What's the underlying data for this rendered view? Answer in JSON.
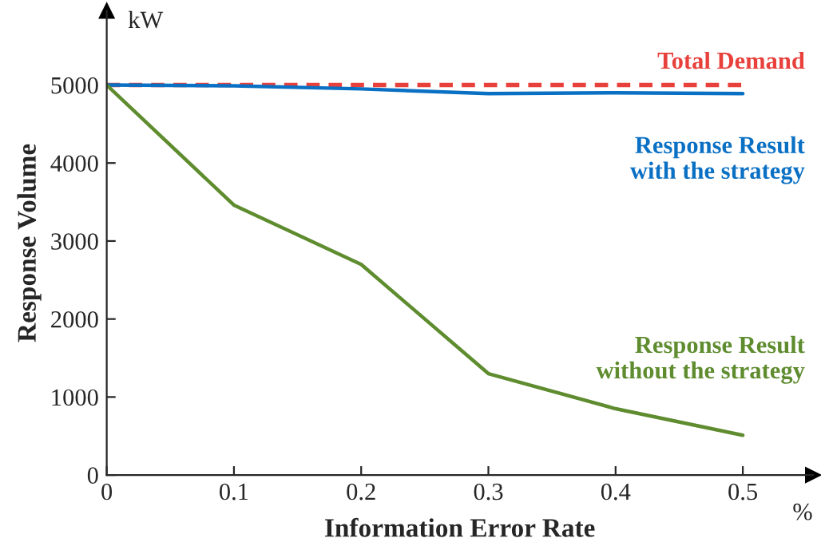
{
  "chart_data": {
    "type": "line",
    "xlabel": "Information Error Rate",
    "ylabel": "Response Volume",
    "annotations": [
      "kW",
      "%"
    ],
    "x": [
      0,
      0.1,
      0.2,
      0.3,
      0.4,
      0.5
    ],
    "series": [
      {
        "name": "Total Demand",
        "color": "#e8413c",
        "line_style": "dashed",
        "values": [
          5000,
          5000,
          5000,
          5000,
          5000,
          5000
        ]
      },
      {
        "name": "Response Result\nwith the strategy",
        "color": "#0a70c4",
        "line_style": "solid",
        "values": [
          5000,
          4990,
          4950,
          4890,
          4900,
          4890
        ]
      },
      {
        "name": "Response Result\nwithout the strategy",
        "color": "#5e8c2e",
        "line_style": "solid",
        "values": [
          5000,
          3460,
          2700,
          1300,
          850,
          510
        ]
      }
    ],
    "xlim": [
      0,
      0.555
    ],
    "ylim": [
      0,
      5950
    ],
    "xticks": [
      0,
      0.1,
      0.2,
      0.3,
      0.4,
      0.5
    ],
    "yticks": [
      0,
      1000,
      2000,
      3000,
      4000,
      5000
    ],
    "grid": false,
    "legend": false,
    "marker": "none"
  }
}
